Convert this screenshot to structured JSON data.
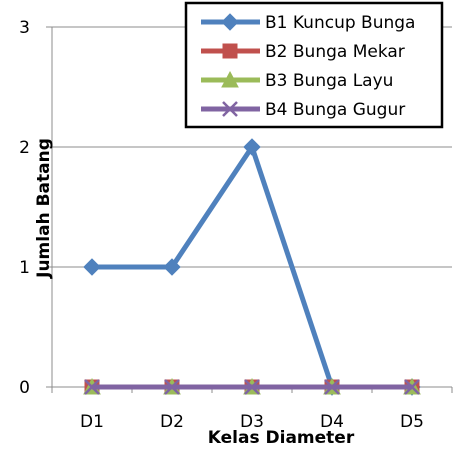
{
  "chart_data": {
    "type": "line",
    "categories": [
      "D1",
      "D2",
      "D3",
      "D4",
      "D5"
    ],
    "series": [
      {
        "name": "B1 Kuncup Bunga",
        "values": [
          1,
          1,
          2,
          0,
          0
        ],
        "color": "#4f81bd",
        "marker": "diamond"
      },
      {
        "name": "B2 Bunga Mekar",
        "values": [
          0,
          0,
          0,
          0,
          0
        ],
        "color": "#c0504d",
        "marker": "square"
      },
      {
        "name": "B3 Bunga Layu",
        "values": [
          0,
          0,
          0,
          0,
          0
        ],
        "color": "#9bbb59",
        "marker": "triangle"
      },
      {
        "name": "B4 Bunga Gugur",
        "values": [
          0,
          0,
          0,
          0,
          0
        ],
        "color": "#8064a2",
        "marker": "x"
      }
    ],
    "xlabel": "Kelas Diameter",
    "ylabel": "Jumlah Batang",
    "ylim": [
      0,
      3
    ],
    "yticks": [
      0,
      1,
      2,
      3
    ],
    "grid": true,
    "legend_position": "top-right"
  }
}
